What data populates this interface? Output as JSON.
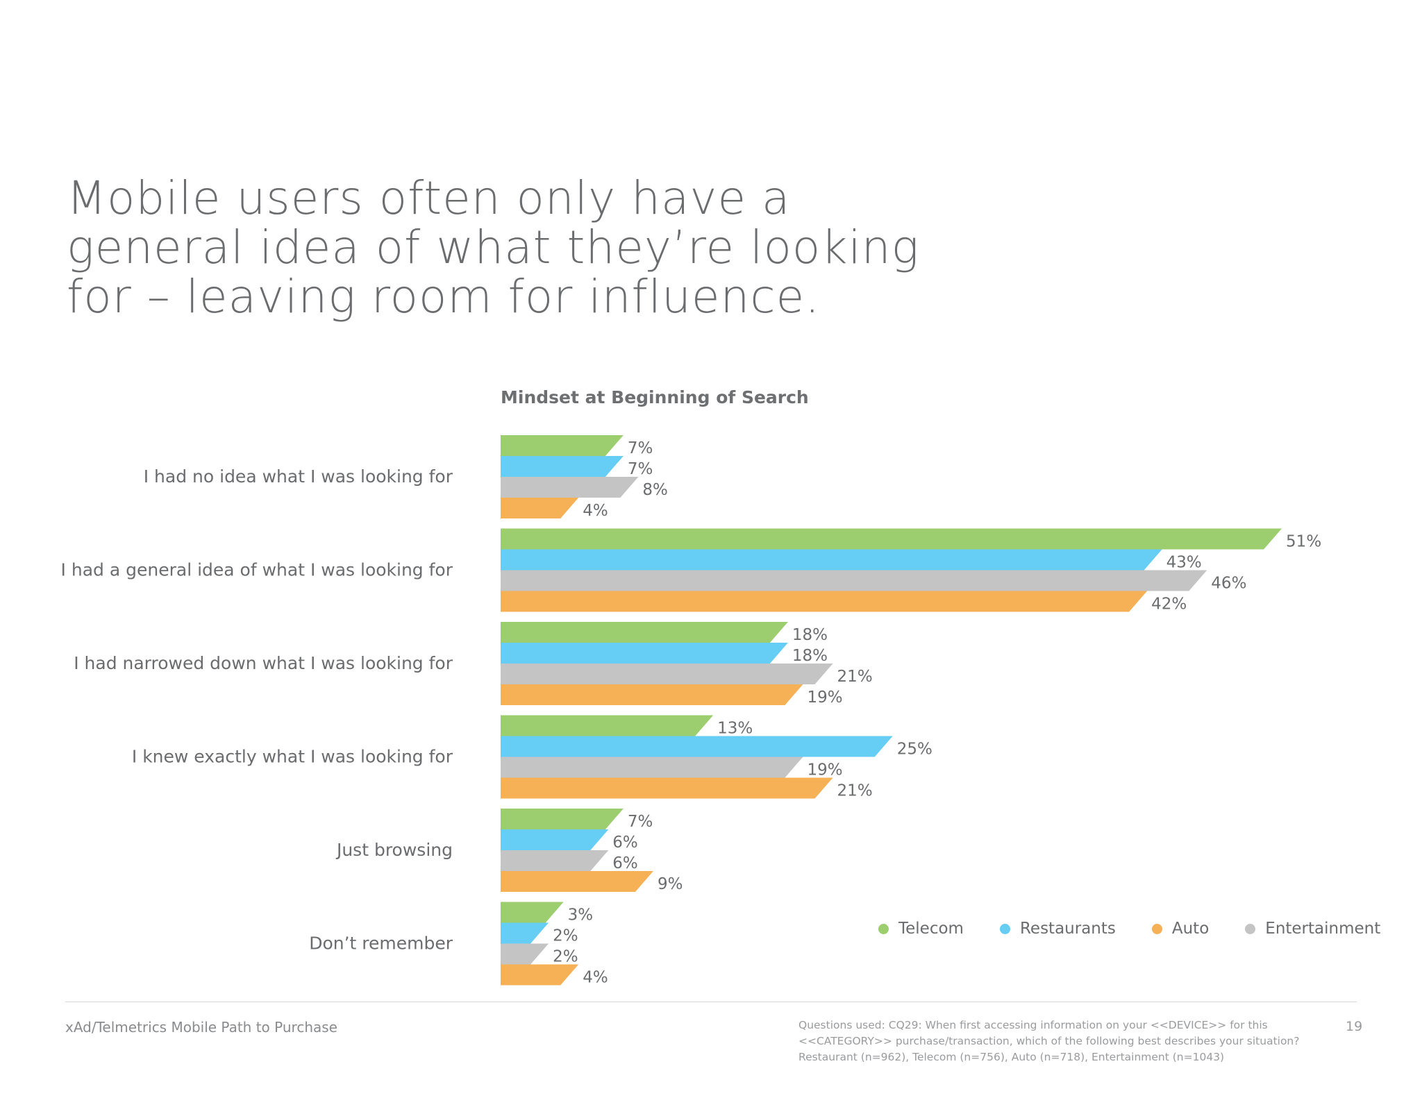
{
  "headline": {
    "lines": [
      "Mobile users often only have a",
      "general idea of what they’re looking",
      "for – leaving room for influence."
    ]
  },
  "colors": {
    "telecom": "#9ccd6e",
    "restaurants": "#66cdf5",
    "auto": "#f6b055",
    "entertainment": "#c4c4c4",
    "text": "#6b6c6e"
  },
  "legend": [
    {
      "name": "Telecom",
      "color": "#9ccd6e",
      "icon": "dot-icon"
    },
    {
      "name": "Restaurants",
      "color": "#66cdf5",
      "icon": "dot-icon"
    },
    {
      "name": "Auto",
      "color": "#f6b055",
      "icon": "dot-icon"
    },
    {
      "name": "Entertainment",
      "color": "#c4c4c4",
      "icon": "dot-icon"
    }
  ],
  "chart_data": {
    "type": "bar",
    "orientation": "horizontal",
    "title": "Mindset at Beginning of Search",
    "categories": [
      "I had no idea what I was looking for",
      "I had a general idea of what I was looking for",
      "I had narrowed down what I was looking for",
      "I knew exactly what I was looking for",
      "Just browsing",
      "Don’t remember"
    ],
    "series": [
      {
        "name": "Telecom",
        "color": "#9ccd6e",
        "values": [
          7,
          51,
          18,
          13,
          7,
          3
        ]
      },
      {
        "name": "Restaurants",
        "color": "#66cdf5",
        "values": [
          7,
          43,
          18,
          25,
          6,
          2
        ]
      },
      {
        "name": "Entertainment",
        "color": "#c4c4c4",
        "values": [
          8,
          46,
          21,
          19,
          6,
          2
        ]
      },
      {
        "name": "Auto",
        "color": "#f6b055",
        "values": [
          4,
          42,
          19,
          21,
          9,
          4
        ]
      }
    ],
    "value_suffix": "%",
    "xlim": [
      0,
      51
    ],
    "grid": false,
    "legend_position": "bottom-right"
  },
  "footer": {
    "source": "xAd/Telmetrics Mobile Path to Purchase",
    "note_lines": [
      "Questions used: CQ29: When first accessing information on your <<DEVICE>> for this",
      "<<CATEGORY>> purchase/transaction, which of the following best describes your situation?",
      "Restaurant (n=962), Telecom (n=756), Auto (n=718), Entertainment (n=1043)"
    ],
    "page_number": "19"
  }
}
